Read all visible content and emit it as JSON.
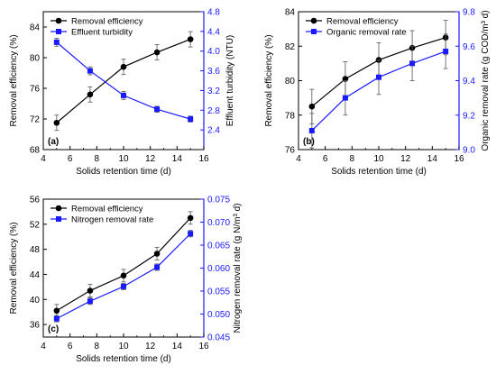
{
  "chart_data": [
    {
      "type": "line",
      "panel_label": "(a)",
      "xlabel": "Solids retention time (d)",
      "ylabel": "Removal efficiency (%)",
      "y2label": "Effluent turbidity (NTU)",
      "xlim": [
        4,
        16
      ],
      "ylim": [
        68,
        86
      ],
      "y2lim": [
        2.0,
        4.8
      ],
      "xticks": [
        "4",
        "6",
        "8",
        "10",
        "12",
        "14",
        "16"
      ],
      "yticks": [
        "68",
        "72",
        "76",
        "80",
        "84"
      ],
      "y2ticks": [
        "2.4",
        "2.8",
        "3.2",
        "3.6",
        "4.0",
        "4.4",
        "4.8"
      ],
      "legend_position": "top-left",
      "x": [
        5,
        7.5,
        10,
        12.5,
        15
      ],
      "series": [
        {
          "name": "Removal efficiency",
          "axis": "left",
          "color": "#000000",
          "marker": "circle",
          "values": [
            71.5,
            75.2,
            78.8,
            80.7,
            82.4
          ],
          "errors": [
            1.0,
            1.0,
            1.0,
            1.0,
            1.0
          ]
        },
        {
          "name": "Effluent turbidity",
          "axis": "right",
          "color": "#1a1aff",
          "marker": "square",
          "values": [
            4.18,
            3.6,
            3.1,
            2.82,
            2.62
          ],
          "errors": [
            0.08,
            0.08,
            0.08,
            0.06,
            0.06
          ]
        }
      ]
    },
    {
      "type": "line",
      "panel_label": "(b)",
      "xlabel": "Solids retention time (d)",
      "ylabel": "Removal efficiency (%)",
      "y2label": "Organic removal rate (g COD/m³ d)",
      "xlim": [
        4,
        16
      ],
      "ylim": [
        76,
        84
      ],
      "y2lim": [
        9.0,
        9.8
      ],
      "xticks": [
        "4",
        "6",
        "8",
        "10",
        "12",
        "14",
        "16"
      ],
      "yticks": [
        "76",
        "78",
        "80",
        "82",
        "84"
      ],
      "y2ticks": [
        "9.0",
        "9.2",
        "9.4",
        "9.6",
        "9.8"
      ],
      "legend_position": "top-left",
      "x": [
        5,
        7.5,
        10,
        12.5,
        15
      ],
      "series": [
        {
          "name": "Removal efficiency",
          "axis": "left",
          "color": "#000000",
          "marker": "circle",
          "values": [
            78.5,
            80.1,
            81.2,
            81.9,
            82.5
          ],
          "errors": [
            1.0,
            1.0,
            1.0,
            1.0,
            1.0
          ]
        },
        {
          "name": "Organic removal rate",
          "axis": "right",
          "color": "#1a1aff",
          "marker": "square",
          "values": [
            9.11,
            9.3,
            9.42,
            9.5,
            9.57
          ],
          "errors": [
            0.1,
            0.1,
            0.1,
            0.1,
            0.1
          ]
        }
      ]
    },
    {
      "type": "line",
      "panel_label": "(c)",
      "xlabel": "Solids retention time (d)",
      "ylabel": "Removal efficiency (%)",
      "y2label": "Nitrogen removal rate (g N/m³ d)",
      "xlim": [
        4,
        16
      ],
      "ylim": [
        34,
        56
      ],
      "y2lim": [
        0.045,
        0.075
      ],
      "xticks": [
        "4",
        "6",
        "8",
        "10",
        "12",
        "14",
        "16"
      ],
      "yticks": [
        "36",
        "40",
        "44",
        "48",
        "52",
        "56"
      ],
      "y2ticks": [
        "0.045",
        "0.050",
        "0.055",
        "0.060",
        "0.065",
        "0.070",
        "0.075"
      ],
      "legend_position": "top-left",
      "x": [
        5,
        7.5,
        10,
        12.5,
        15
      ],
      "series": [
        {
          "name": "Removal efficiency",
          "axis": "left",
          "color": "#000000",
          "marker": "circle",
          "values": [
            38.2,
            41.4,
            43.8,
            47.3,
            53.0
          ],
          "errors": [
            1.0,
            1.0,
            1.0,
            1.0,
            1.0
          ]
        },
        {
          "name": "Nitrogen removal rate",
          "axis": "right",
          "color": "#1a1aff",
          "marker": "square",
          "values": [
            0.049,
            0.0528,
            0.056,
            0.0602,
            0.0675
          ],
          "errors": [
            0.0007,
            0.0007,
            0.0007,
            0.0007,
            0.0007
          ]
        }
      ]
    }
  ]
}
